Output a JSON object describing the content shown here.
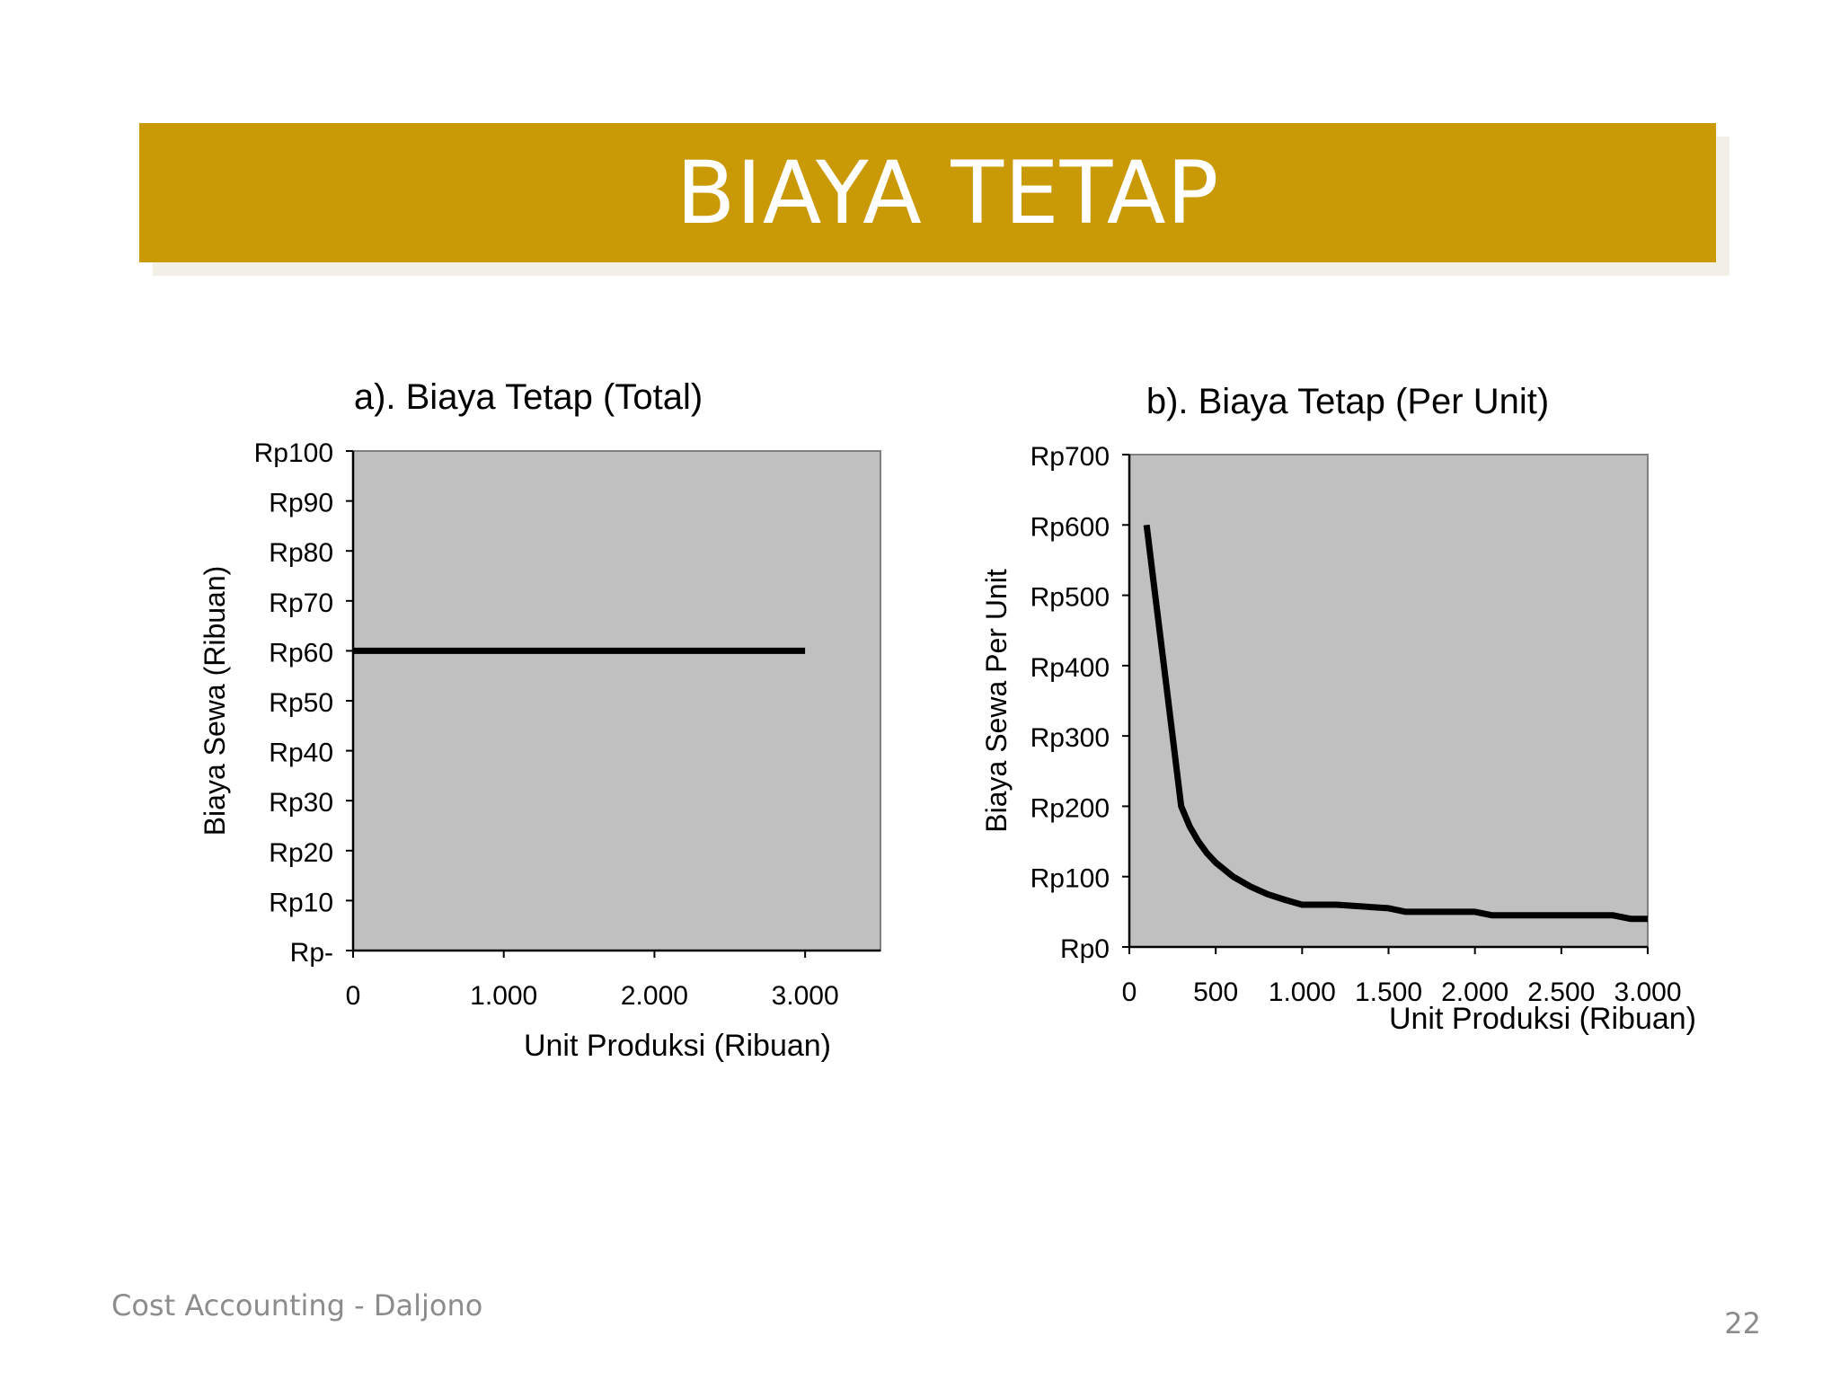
{
  "slide": {
    "title": "BIAYA TETAP",
    "footer_text": "Cost Accounting - Daljono",
    "page_number": "22",
    "colors": {
      "title_bar": "#c99a06",
      "title_text": "#ffffff",
      "footer_text": "#8c8c8c"
    }
  },
  "chart_data": [
    {
      "type": "line",
      "title": "a).  Biaya Tetap (Total)",
      "xlabel": "Unit Produksi (Ribuan)",
      "ylabel": "Biaya Sewa (Ribuan)",
      "xlim": [
        0,
        3500
      ],
      "ylim": [
        0,
        100
      ],
      "x_ticks": [
        0,
        1000,
        2000,
        3000
      ],
      "x_tick_labels": [
        "0",
        "1.000",
        "2.000",
        "3.000"
      ],
      "y_ticks": [
        0,
        10,
        20,
        30,
        40,
        50,
        60,
        70,
        80,
        90,
        100
      ],
      "y_tick_labels": [
        "Rp-",
        "Rp10",
        "Rp20",
        "Rp30",
        "Rp40",
        "Rp50",
        "Rp60",
        "Rp70",
        "Rp80",
        "Rp90",
        "Rp100"
      ],
      "grid": false,
      "legend": "none",
      "plot_background": "#c0c0c0",
      "line_color": "#000000",
      "series": [
        {
          "x": [
            0,
            3000
          ],
          "y": [
            60,
            60
          ]
        }
      ]
    },
    {
      "type": "line",
      "title": "b).  Biaya Tetap (Per Unit)",
      "xlabel": "Unit Produksi (Ribuan)",
      "ylabel": "Biaya Sewa Per Unit",
      "xlim": [
        0,
        3000
      ],
      "ylim": [
        0,
        700
      ],
      "x_ticks": [
        0,
        500,
        1000,
        1500,
        2000,
        2500,
        3000
      ],
      "x_tick_labels": [
        "0",
        "500",
        "1.000",
        "1.500",
        "2.000",
        "2.500",
        "3.000"
      ],
      "y_ticks": [
        0,
        100,
        200,
        300,
        400,
        500,
        600,
        700
      ],
      "y_tick_labels": [
        "Rp0",
        "Rp100",
        "Rp200",
        "Rp300",
        "Rp400",
        "Rp500",
        "Rp600",
        "Rp700"
      ],
      "grid": false,
      "legend": "none",
      "plot_background": "#c0c0c0",
      "line_color": "#000000",
      "series": [
        {
          "x": [
            100,
            150,
            200,
            250,
            300,
            350,
            400,
            450,
            500,
            600,
            700,
            800,
            900,
            1000,
            1200,
            1500,
            1600,
            2000,
            2100,
            2500,
            2800,
            2900,
            3000
          ],
          "y": [
            600,
            500,
            400,
            300,
            200,
            171,
            150,
            133,
            120,
            100,
            86,
            75,
            67,
            60,
            60,
            55,
            50,
            50,
            45,
            45,
            45,
            40,
            40
          ]
        }
      ]
    }
  ]
}
